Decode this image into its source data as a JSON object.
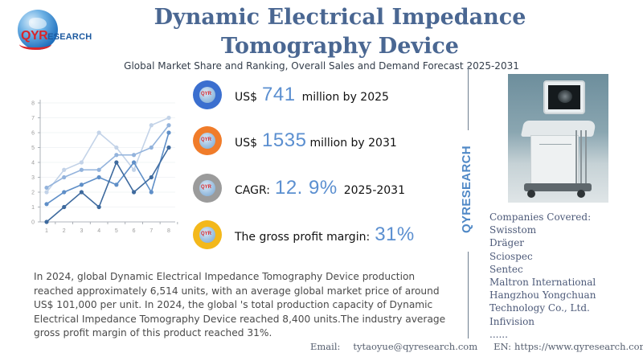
{
  "brand": {
    "logo_main": "QYR",
    "logo_rest": "ESEARCH",
    "vertical_brand": "QYRESEARCH"
  },
  "header": {
    "title": "Dynamic Electrical Impedance Tomography Device",
    "subtitle": "Global Market Share and Ranking, Overall Sales and Demand Forecast 2025-2031"
  },
  "stats": [
    {
      "icon": "qyr-globe-badge-blue",
      "color": "#3b6fcf",
      "prefix": "US$",
      "value": "741",
      "suffix": "million by 2025"
    },
    {
      "icon": "qyr-globe-badge-orange",
      "color": "#f07c2a",
      "prefix": "US$",
      "value": "1535",
      "suffix": "million by 2031"
    },
    {
      "icon": "qyr-globe-badge-gray",
      "color": "#9b9b9b",
      "prefix": "CAGR:",
      "value": "12. 9%",
      "suffix": "2025-2031"
    },
    {
      "icon": "qyr-globe-badge-yellow",
      "color": "#f3b81b",
      "prefix": "The gross profit margin:",
      "value": "31%",
      "suffix": ""
    }
  ],
  "companies": {
    "heading": "Companies Covered:",
    "list": [
      "Swisstom",
      "Dräger",
      "Sciospec",
      "Sentec",
      "Maltron International",
      "Hangzhou Yongchuan",
      "Technology Co., Ltd.",
      "Infivision",
      "......"
    ]
  },
  "description": "In 2024, global Dynamic Electrical Impedance Tomography Device production reached approximately 6,514 units, with an average global market price of around US$ 101,000 per unit. In 2024, the global 's total production capacity of Dynamic Electrical Impedance Tomography Device reached 8,400 units.The industry average gross profit margin of this product reached 31%.",
  "footer": {
    "email_label": "Email:",
    "email": "tytaoyue@qyresearch.com",
    "web_label": "EN:",
    "web": "https://www.qyresearch.com"
  },
  "image": {
    "alt": "medical-imaging-cart-photo"
  },
  "chart_data": {
    "type": "line",
    "title": "",
    "xlabel": "",
    "ylabel": "",
    "x": [
      1,
      2,
      3,
      4,
      5,
      6,
      7,
      8
    ],
    "yticks": [
      0,
      1,
      2,
      3,
      4,
      5,
      6,
      7,
      8
    ],
    "ylim": [
      0,
      8
    ],
    "grid": true,
    "legend": "none",
    "series": [
      {
        "name": "series-1",
        "color": "#c3d3e8",
        "values": [
          2.0,
          3.5,
          4.0,
          6.0,
          5.0,
          3.5,
          6.5,
          7.0
        ]
      },
      {
        "name": "series-2",
        "color": "#93b3dc",
        "values": [
          2.3,
          3.0,
          3.5,
          3.5,
          4.5,
          4.5,
          5.0,
          6.5
        ]
      },
      {
        "name": "series-3",
        "color": "#5f8fc8",
        "values": [
          1.2,
          2.0,
          2.5,
          3.0,
          2.5,
          4.0,
          2.0,
          6.0
        ]
      },
      {
        "name": "series-4",
        "color": "#3e6a9e",
        "values": [
          0.0,
          1.0,
          2.0,
          1.0,
          4.0,
          2.0,
          3.0,
          5.0
        ]
      }
    ]
  }
}
